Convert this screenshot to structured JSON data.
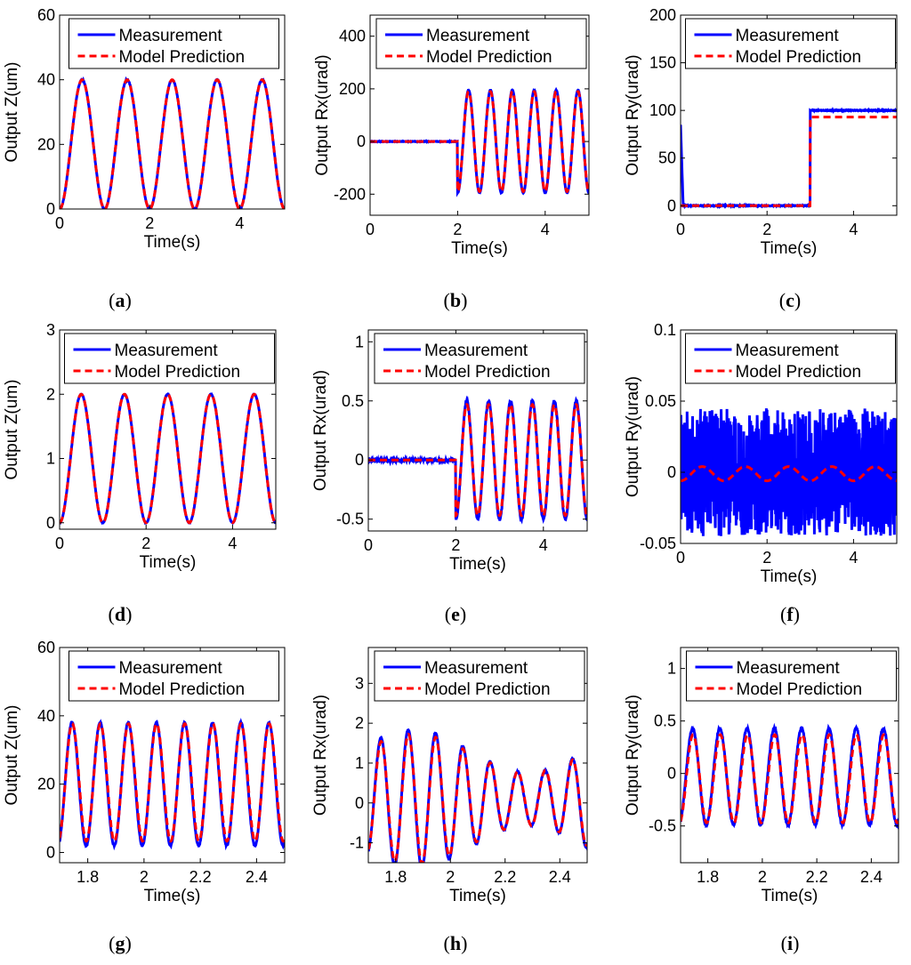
{
  "colors": {
    "measurement": "#0000ff",
    "prediction": "#ff0000",
    "axis": "#000000",
    "background": "#ffffff"
  },
  "legend": {
    "measurement": "Measurement",
    "prediction": "Model Prediction"
  },
  "chart_data": [
    {
      "id": "a",
      "caption_letter": "a",
      "type": "line",
      "xlabel": "Time(s)",
      "ylabel": "Output Z(um)",
      "xlim": [
        0,
        5
      ],
      "ylim": [
        0,
        60
      ],
      "xticks": [
        0,
        2,
        4
      ],
      "yticks": [
        0,
        20,
        40,
        60
      ],
      "xtick_labels": [
        "0",
        "2",
        "4"
      ],
      "ytick_labels": [
        "0",
        "20",
        "40",
        "60"
      ],
      "legend_position": "top",
      "series": [
        {
          "name": "Measurement",
          "generator": {
            "kind": "sine",
            "start": 0,
            "base": 0,
            "amp": 20,
            "offset": 20,
            "freq": 1,
            "noise": 0.3
          }
        },
        {
          "name": "Model Prediction",
          "generator": {
            "kind": "sine",
            "start": 0,
            "base": 0,
            "amp": 20,
            "offset": 20,
            "freq": 1,
            "noise": 0
          }
        }
      ]
    },
    {
      "id": "b",
      "caption_letter": "b",
      "type": "line",
      "xlabel": "Time(s)",
      "ylabel": "Output Rx(urad)",
      "xlim": [
        0,
        5
      ],
      "ylim": [
        -280,
        480
      ],
      "xticks": [
        0,
        2,
        4
      ],
      "yticks": [
        -200,
        0,
        200,
        400
      ],
      "xtick_labels": [
        "0",
        "2",
        "4"
      ],
      "ytick_labels": [
        "-200",
        "0",
        "200",
        "400"
      ],
      "legend_position": "top",
      "series": [
        {
          "name": "Measurement",
          "generator": {
            "kind": "sine",
            "start": 2,
            "base": 0,
            "amp": 195,
            "offset": 0,
            "freq": 2,
            "noise": 2
          }
        },
        {
          "name": "Model Prediction",
          "generator": {
            "kind": "sine",
            "start": 2,
            "base": 0,
            "amp": 190,
            "offset": 0,
            "freq": 2,
            "noise": 0
          }
        }
      ]
    },
    {
      "id": "c",
      "caption_letter": "c",
      "type": "line",
      "xlabel": "Time(s)",
      "ylabel": "Output Ry(urad)",
      "xlim": [
        0,
        5
      ],
      "ylim": [
        -10,
        200
      ],
      "xticks": [
        0,
        2,
        4
      ],
      "yticks": [
        0,
        50,
        100,
        150,
        200
      ],
      "xtick_labels": [
        "0",
        "2",
        "4"
      ],
      "ytick_labels": [
        "0",
        "50",
        "100",
        "150",
        "200"
      ],
      "legend_position": "top",
      "series": [
        {
          "name": "Measurement",
          "generator": {
            "kind": "step",
            "start": 3,
            "before": 0,
            "after": 100,
            "spike": 85,
            "noise": 0.8
          }
        },
        {
          "name": "Model Prediction",
          "generator": {
            "kind": "step",
            "start": 3,
            "before": 0,
            "after": 93,
            "spike": 0,
            "noise": 0
          }
        }
      ]
    },
    {
      "id": "d",
      "caption_letter": "d",
      "type": "line",
      "xlabel": "Time(s)",
      "ylabel": "Output Z(um)",
      "xlim": [
        0,
        5
      ],
      "ylim": [
        -0.1,
        3
      ],
      "xticks": [
        0,
        2,
        4
      ],
      "yticks": [
        0,
        1,
        2,
        3
      ],
      "xtick_labels": [
        "0",
        "2",
        "4"
      ],
      "ytick_labels": [
        "0",
        "1",
        "2",
        "3"
      ],
      "legend_position": "top",
      "series": [
        {
          "name": "Measurement",
          "generator": {
            "kind": "sine",
            "start": 0,
            "base": 0,
            "amp": 1,
            "offset": 1,
            "freq": 1,
            "noise": 0.01
          }
        },
        {
          "name": "Model Prediction",
          "generator": {
            "kind": "sine",
            "start": 0,
            "base": 0,
            "amp": 1,
            "offset": 1,
            "freq": 1,
            "noise": 0
          }
        }
      ]
    },
    {
      "id": "e",
      "caption_letter": "e",
      "type": "line",
      "xlabel": "Time(s)",
      "ylabel": "Output Rx(urad)",
      "xlim": [
        0,
        5
      ],
      "ylim": [
        -0.6,
        1.1
      ],
      "xticks": [
        0,
        2,
        4
      ],
      "yticks": [
        -0.5,
        0,
        0.5,
        1
      ],
      "xtick_labels": [
        "0",
        "2",
        "4"
      ],
      "ytick_labels": [
        "-0.5",
        "0",
        "0.5",
        "1"
      ],
      "legend_position": "top",
      "series": [
        {
          "name": "Measurement",
          "generator": {
            "kind": "sine",
            "start": 2,
            "base": 0,
            "amp": 0.5,
            "offset": 0,
            "freq": 2,
            "noise": 0.02
          }
        },
        {
          "name": "Model Prediction",
          "generator": {
            "kind": "sine",
            "start": 2,
            "base": 0,
            "amp": 0.47,
            "offset": 0,
            "freq": 2,
            "noise": 0
          }
        }
      ]
    },
    {
      "id": "f",
      "caption_letter": "f",
      "type": "line",
      "xlabel": "Time(s)",
      "ylabel": "Output Ry(urad)",
      "xlim": [
        0,
        5
      ],
      "ylim": [
        -0.05,
        0.1
      ],
      "xticks": [
        0,
        2,
        4
      ],
      "yticks": [
        -0.05,
        0,
        0.05,
        0.1
      ],
      "xtick_labels": [
        "0",
        "2",
        "4"
      ],
      "ytick_labels": [
        "-0.05",
        "0",
        "0.05",
        "0.1"
      ],
      "legend_position": "top",
      "series": [
        {
          "name": "Measurement",
          "generator": {
            "kind": "noise",
            "center": 0,
            "amp": 0.045
          }
        },
        {
          "name": "Model Prediction",
          "generator": {
            "kind": "sine",
            "start": 0,
            "base": 0,
            "amp": 0.005,
            "offset": -0.001,
            "freq": 1,
            "noise": 0
          }
        }
      ]
    },
    {
      "id": "g",
      "caption_letter": "g",
      "type": "line",
      "xlabel": "Time(s)",
      "ylabel": "Output Z(um)",
      "xlim": [
        1.7,
        2.5
      ],
      "ylim": [
        -3,
        60
      ],
      "xticks": [
        1.8,
        2,
        2.2,
        2.4
      ],
      "yticks": [
        0,
        20,
        40,
        60
      ],
      "xtick_labels": [
        "1.8",
        "2",
        "2.2",
        "2.4"
      ],
      "ytick_labels": [
        "0",
        "20",
        "40",
        "60"
      ],
      "legend_position": "top",
      "series": [
        {
          "name": "Measurement",
          "generator": {
            "kind": "fastsine",
            "offset": 20,
            "amp": 18,
            "freq": 10,
            "phase": -1.2,
            "noise": 0.4
          }
        },
        {
          "name": "Model Prediction",
          "generator": {
            "kind": "fastsine",
            "offset": 20.5,
            "amp": 17.2,
            "freq": 10,
            "phase": -1.25,
            "noise": 0
          }
        }
      ]
    },
    {
      "id": "h",
      "caption_letter": "h",
      "type": "line",
      "xlabel": "Time(s)",
      "ylabel": "Output Rx(urad)",
      "xlim": [
        1.7,
        2.5
      ],
      "ylim": [
        -1.5,
        3.9
      ],
      "xticks": [
        1.8,
        2,
        2.2,
        2.4
      ],
      "yticks": [
        -1,
        0,
        1,
        2,
        3
      ],
      "xtick_labels": [
        "1.8",
        "2",
        "2.2",
        "2.4"
      ],
      "ytick_labels": [
        "-1",
        "0",
        "1",
        "2",
        "3"
      ],
      "legend_position": "top",
      "series": [
        {
          "name": "Measurement",
          "generator": {
            "kind": "beat",
            "offset": 0.1,
            "amp": 1.2,
            "freq": 10,
            "phase": -1.3,
            "mod": 0.45,
            "noise": 0.03
          }
        },
        {
          "name": "Model Prediction",
          "generator": {
            "kind": "beat",
            "offset": 0.1,
            "amp": 1.15,
            "freq": 10,
            "phase": -1.35,
            "mod": 0.42,
            "noise": 0
          }
        }
      ]
    },
    {
      "id": "i",
      "caption_letter": "i",
      "type": "line",
      "xlabel": "Time(s)",
      "ylabel": "Output Ry(urad)",
      "xlim": [
        1.7,
        2.5
      ],
      "ylim": [
        -0.85,
        1.2
      ],
      "xticks": [
        1.8,
        2,
        2.2,
        2.4
      ],
      "yticks": [
        -0.5,
        0,
        0.5,
        1
      ],
      "xtick_labels": [
        "1.8",
        "2",
        "2.2",
        "2.4"
      ],
      "ytick_labels": [
        "-0.5",
        "0",
        "0.5",
        "1"
      ],
      "legend_position": "top",
      "series": [
        {
          "name": "Measurement",
          "generator": {
            "kind": "fastsine",
            "offset": -0.03,
            "amp": 0.46,
            "freq": 10,
            "phase": -1.2,
            "noise": 0.02
          }
        },
        {
          "name": "Model Prediction",
          "generator": {
            "kind": "fastsine",
            "offset": -0.05,
            "amp": 0.42,
            "freq": 10,
            "phase": -1.3,
            "noise": 0
          }
        }
      ]
    }
  ]
}
